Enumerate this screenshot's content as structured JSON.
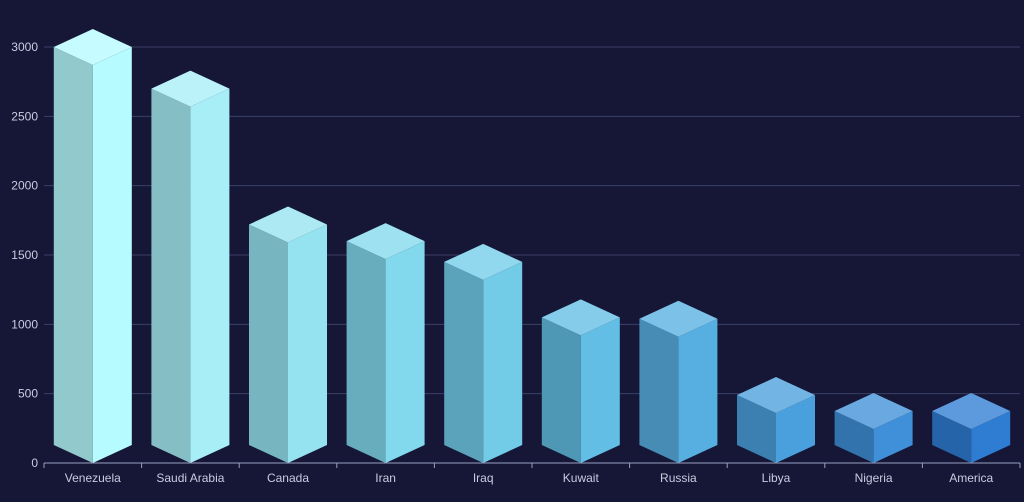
{
  "chart_data": {
    "type": "bar",
    "categories": [
      "Venezuela",
      "Saudi Arabia",
      "Canada",
      "Iran",
      "Iraq",
      "Kuwait",
      "Russia",
      "Libya",
      "Nigeria",
      "America"
    ],
    "series": [
      {
        "values": [
          3000,
          2700,
          1720,
          1600,
          1450,
          1050,
          1040,
          490,
          375,
          375
        ]
      }
    ],
    "y_ticks": [
      0,
      500,
      1000,
      1500,
      2000,
      2500,
      3000
    ],
    "ylim": [
      0,
      3000
    ],
    "grid": true,
    "style": "3d-isometric",
    "colors": {
      "background": "#161737",
      "grid": "#3a3f66",
      "axis": "#9aa0c0",
      "tick_label": "#c9cce0",
      "bar_gradient": [
        "#b6fbff",
        "#a8eef7",
        "#95e3f0",
        "#82d8ec",
        "#72cce8",
        "#62bee4",
        "#57afe1",
        "#4aa0dd",
        "#3f90d9",
        "#2f7dd3"
      ]
    }
  }
}
